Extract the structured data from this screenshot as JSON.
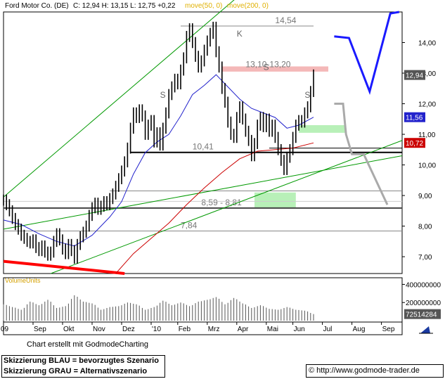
{
  "header": {
    "title": "Ford Motor Co. (DE)",
    "quote": "C: 12,94 H: 13,15 L: 12,75 +0,22",
    "ma1_label": "move(50, 0)",
    "ma2_label": "move(200, 0)"
  },
  "colors": {
    "price": "#000000",
    "ma50": "#2222cc",
    "ma200": "#cc0000",
    "channel": "#009900",
    "support_red": "#ff0000",
    "scenario_blue": "#1a1aff",
    "scenario_grey": "#aaaaaa",
    "resistance_zone": "#f4b8b8",
    "green_zone": "#b8f0b8",
    "volume": "#555555"
  },
  "chart_data": {
    "type": "line",
    "title": "Ford Motor Co. (DE)",
    "y_range": [
      6.45,
      15.0
    ],
    "y_ticks": [
      {
        "value": 14.0,
        "label": "14,00"
      },
      {
        "value": 13.0,
        "label": "13,00"
      },
      {
        "value": 12.0,
        "label": "12,00"
      },
      {
        "value": 11.0,
        "label": "11,00"
      },
      {
        "value": 10.0,
        "label": "10,00"
      },
      {
        "value": 9.0,
        "label": "9,00"
      },
      {
        "value": 8.0,
        "label": "8,00"
      },
      {
        "value": 7.0,
        "label": "7,00"
      }
    ],
    "x_labels": [
      "09",
      "Sep",
      "Okt",
      "Nov",
      "Dez",
      "'10",
      "Feb",
      "Mrz",
      "Apr",
      "Mai",
      "Jun",
      "Jul",
      "Aug",
      "Sep"
    ],
    "price_badges": [
      {
        "value": 12.94,
        "label": "12,94",
        "color": "#555555"
      },
      {
        "value": 11.56,
        "label": "11,56",
        "color": "#2222cc"
      },
      {
        "value": 10.72,
        "label": "10,72",
        "color": "#cc0000"
      }
    ],
    "horizontal_levels": [
      {
        "value": 14.54,
        "label": "14,54"
      },
      {
        "value": 13.1,
        "label": "13,10-13,20"
      },
      {
        "value": 10.41,
        "label": "10,41"
      },
      {
        "value": 8.59,
        "label": "8,59 - 8,81"
      },
      {
        "value": 7.84,
        "label": "7,84"
      }
    ],
    "pattern_labels": [
      "S",
      "K",
      "S",
      "S"
    ],
    "series": [
      {
        "name": "price",
        "points": [
          [
            0,
            8.85
          ],
          [
            1,
            8.7
          ],
          [
            2,
            8.5
          ],
          [
            3,
            8.25
          ],
          [
            4,
            8.05
          ],
          [
            5,
            7.9
          ],
          [
            6,
            7.7
          ],
          [
            7,
            7.6
          ],
          [
            8,
            7.5
          ],
          [
            9,
            7.45
          ],
          [
            10,
            7.55
          ],
          [
            11,
            7.3
          ],
          [
            12,
            7.2
          ],
          [
            13,
            7.35
          ],
          [
            14,
            7.15
          ],
          [
            15,
            7.05
          ],
          [
            16,
            7.15
          ],
          [
            17,
            7.5
          ],
          [
            18,
            7.75
          ],
          [
            19,
            7.55
          ],
          [
            20,
            7.25
          ],
          [
            21,
            7.1
          ],
          [
            22,
            7.4
          ],
          [
            23,
            7.2
          ],
          [
            24,
            6.95
          ],
          [
            25,
            7.4
          ],
          [
            26,
            7.65
          ],
          [
            27,
            7.8
          ],
          [
            28,
            8.0
          ],
          [
            29,
            8.35
          ],
          [
            30,
            8.6
          ],
          [
            31,
            8.75
          ],
          [
            32,
            8.55
          ],
          [
            33,
            8.65
          ],
          [
            34,
            8.8
          ],
          [
            35,
            8.7
          ],
          [
            36,
            8.9
          ],
          [
            37,
            9.05
          ],
          [
            38,
            9.3
          ],
          [
            39,
            9.55
          ],
          [
            40,
            9.8
          ],
          [
            41,
            10.1
          ],
          [
            42,
            10.55
          ],
          [
            43,
            11.2
          ],
          [
            44,
            11.7
          ],
          [
            45,
            11.55
          ],
          [
            46,
            11.8
          ],
          [
            47,
            11.6
          ],
          [
            48,
            11.0
          ],
          [
            49,
            11.3
          ],
          [
            50,
            11.45
          ],
          [
            51,
            10.75
          ],
          [
            52,
            11.05
          ],
          [
            53,
            10.65
          ],
          [
            54,
            11.2
          ],
          [
            55,
            11.7
          ],
          [
            56,
            12.3
          ],
          [
            57,
            12.55
          ],
          [
            58,
            12.8
          ],
          [
            59,
            12.65
          ],
          [
            60,
            13.1
          ],
          [
            61,
            13.5
          ],
          [
            62,
            14.2
          ],
          [
            63,
            14.45
          ],
          [
            64,
            14.0
          ],
          [
            65,
            13.55
          ],
          [
            66,
            13.2
          ],
          [
            67,
            13.4
          ],
          [
            68,
            13.75
          ],
          [
            69,
            14.05
          ],
          [
            70,
            14.3
          ],
          [
            71,
            14.5
          ],
          [
            72,
            13.7
          ],
          [
            73,
            13.2
          ],
          [
            74,
            12.5
          ],
          [
            75,
            12.05
          ],
          [
            76,
            11.4
          ],
          [
            77,
            11.0
          ],
          [
            78,
            10.9
          ],
          [
            79,
            11.55
          ],
          [
            80,
            11.9
          ],
          [
            81,
            11.5
          ],
          [
            82,
            11.1
          ],
          [
            83,
            10.8
          ],
          [
            84,
            10.3
          ],
          [
            85,
            10.7
          ],
          [
            86,
            11.3
          ],
          [
            87,
            11.55
          ],
          [
            88,
            11.25
          ],
          [
            89,
            11.5
          ],
          [
            90,
            11.1
          ],
          [
            91,
            11.3
          ],
          [
            92,
            10.9
          ],
          [
            93,
            10.5
          ],
          [
            94,
            10.15
          ],
          [
            95,
            9.85
          ],
          [
            96,
            10.25
          ],
          [
            97,
            10.5
          ],
          [
            98,
            10.9
          ],
          [
            99,
            11.3
          ],
          [
            100,
            11.45
          ],
          [
            101,
            11.4
          ],
          [
            102,
            11.7
          ],
          [
            103,
            11.9
          ],
          [
            104,
            12.4
          ],
          [
            105,
            12.94
          ]
        ]
      },
      {
        "name": "move(50, 0)",
        "points": [
          [
            0,
            8.2
          ],
          [
            6,
            8.05
          ],
          [
            12,
            7.75
          ],
          [
            18,
            7.5
          ],
          [
            24,
            7.35
          ],
          [
            30,
            7.7
          ],
          [
            36,
            8.3
          ],
          [
            40,
            8.8
          ],
          [
            44,
            9.7
          ],
          [
            48,
            10.4
          ],
          [
            52,
            10.75
          ],
          [
            56,
            11.0
          ],
          [
            60,
            11.6
          ],
          [
            64,
            12.3
          ],
          [
            68,
            12.6
          ],
          [
            72,
            12.95
          ],
          [
            76,
            12.55
          ],
          [
            80,
            12.15
          ],
          [
            84,
            11.85
          ],
          [
            88,
            11.7
          ],
          [
            92,
            11.55
          ],
          [
            96,
            11.2
          ],
          [
            100,
            11.3
          ],
          [
            105,
            11.56
          ]
        ]
      },
      {
        "name": "move(200, 0)",
        "points": [
          [
            38,
            6.45
          ],
          [
            44,
            7.1
          ],
          [
            50,
            7.6
          ],
          [
            56,
            8.1
          ],
          [
            62,
            8.7
          ],
          [
            68,
            9.25
          ],
          [
            74,
            9.75
          ],
          [
            80,
            10.2
          ],
          [
            86,
            10.45
          ],
          [
            92,
            10.5
          ],
          [
            98,
            10.55
          ],
          [
            105,
            10.72
          ]
        ]
      },
      {
        "name": "volume",
        "points": [
          [
            0,
            180
          ],
          [
            3,
            150
          ],
          [
            6,
            120
          ],
          [
            9,
            210
          ],
          [
            12,
            170
          ],
          [
            15,
            230
          ],
          [
            18,
            140
          ],
          [
            21,
            160
          ],
          [
            24,
            280
          ],
          [
            27,
            210
          ],
          [
            30,
            190
          ],
          [
            33,
            120
          ],
          [
            36,
            150
          ],
          [
            39,
            160
          ],
          [
            42,
            200
          ],
          [
            45,
            180
          ],
          [
            48,
            120
          ],
          [
            51,
            150
          ],
          [
            54,
            220
          ],
          [
            57,
            170
          ],
          [
            60,
            200
          ],
          [
            63,
            160
          ],
          [
            66,
            210
          ],
          [
            69,
            230
          ],
          [
            72,
            260
          ],
          [
            75,
            180
          ],
          [
            78,
            250
          ],
          [
            81,
            190
          ],
          [
            84,
            140
          ],
          [
            87,
            170
          ],
          [
            90,
            130
          ],
          [
            93,
            120
          ],
          [
            96,
            150
          ],
          [
            99,
            120
          ],
          [
            102,
            110
          ],
          [
            105,
            72.5
          ]
        ]
      }
    ],
    "volume_axis": {
      "label": "VolumeUnits",
      "ticks": [
        "400000000",
        "200000000"
      ],
      "last_label": "72514284"
    }
  },
  "footer": {
    "credit": "Chart erstellt mit GodmodeCharting",
    "note_blue": "Skizzierung BLAU = bevorzugtes Szenario",
    "note_grey": "Skizzierung GRAU = Alternativszenario",
    "url": "http://www.godmode-trader.de",
    "copyright_symbol": "©"
  }
}
